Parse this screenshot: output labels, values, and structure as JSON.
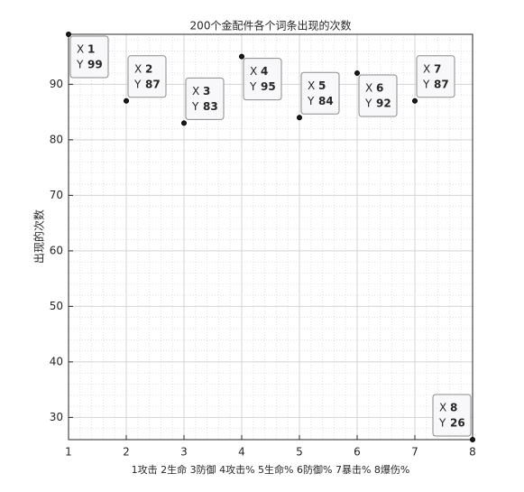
{
  "chart_data": {
    "type": "scatter",
    "title": "200个金配件各个词条出现的次数",
    "x_label": "1攻击 2生命 3防御 4攻击% 5生命% 6防御% 7暴击% 8爆伤%",
    "y_label": "出现的次数",
    "x": [
      1,
      2,
      3,
      4,
      5,
      6,
      7,
      8
    ],
    "values": [
      99,
      87,
      83,
      95,
      84,
      92,
      87,
      26
    ],
    "color": "#1a1a1a",
    "datatip_labels": [
      "X",
      "Y"
    ],
    "datatip_value_color": "#0f8fd6",
    "xlim": [
      1,
      8
    ],
    "xticks": [
      1,
      2,
      3,
      4,
      5,
      6,
      7,
      8
    ],
    "ylim": [
      26,
      99
    ],
    "yticks": [
      30,
      40,
      50,
      60,
      70,
      80,
      90
    ],
    "grid": true,
    "minor_grid": true
  }
}
